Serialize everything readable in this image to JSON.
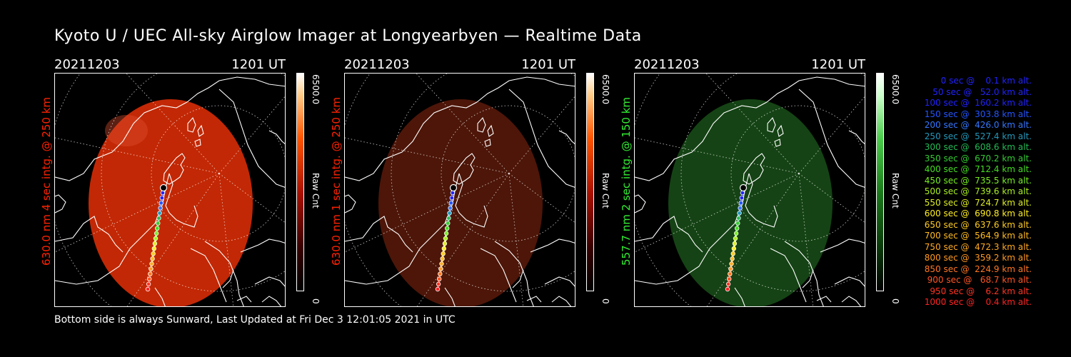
{
  "title": "Kyoto U / UEC All-sky Airglow Imager at Longyearbyen — Realtime Data",
  "footer": "Bottom side is always Sunward, Last Updated at Fri Dec  3 12:01:05 2021 in UTC",
  "panels": [
    {
      "date": "20211203",
      "time": "1201 UT",
      "ylabel": "630.0 nm 4 sec intg. @ 250 km",
      "label_color": "#ff2200",
      "image_color": "#cc2a05",
      "image_opacity": 0.95,
      "cbar_max": "6500.0",
      "cbar_min": "0",
      "cbar_label": "Raw Cnt",
      "cbar_gradient": "red"
    },
    {
      "date": "20211203",
      "time": "1201 UT",
      "ylabel": "630.0 nm 1 sec intg. @ 250 km",
      "label_color": "#ff2200",
      "image_color": "#5a1a0a",
      "image_opacity": 0.85,
      "cbar_max": "6500.0",
      "cbar_min": "0",
      "cbar_label": "Raw Cnt",
      "cbar_gradient": "red"
    },
    {
      "date": "20211203",
      "time": "1201 UT",
      "ylabel": "557.7 nm 2 sec intg. @ 150 km",
      "label_color": "#33ee33",
      "image_color": "#174a17",
      "image_opacity": 0.9,
      "cbar_max": "6500.0",
      "cbar_min": "0",
      "cbar_label": "Raw Cnt",
      "cbar_gradient": "green"
    }
  ],
  "legend": [
    {
      "text": "   0 sec @    0.1 km alt.",
      "color": "#2222ff"
    },
    {
      "text": "  50 sec @   52.0 km alt.",
      "color": "#2222ff"
    },
    {
      "text": " 100 sec @  160.2 km alt.",
      "color": "#2222ff"
    },
    {
      "text": " 150 sec @  303.8 km alt.",
      "color": "#2255ff"
    },
    {
      "text": " 200 sec @  426.0 km alt.",
      "color": "#3377ff"
    },
    {
      "text": " 250 sec @  527.4 km alt.",
      "color": "#2299bb"
    },
    {
      "text": " 300 sec @  608.6 km alt.",
      "color": "#22bb55"
    },
    {
      "text": " 350 sec @  670.2 km alt.",
      "color": "#33cc33"
    },
    {
      "text": " 400 sec @  712.4 km alt.",
      "color": "#44dd22"
    },
    {
      "text": " 450 sec @  735.5 km alt.",
      "color": "#77ee22"
    },
    {
      "text": " 500 sec @  739.6 km alt.",
      "color": "#aaee22"
    },
    {
      "text": " 550 sec @  724.7 km alt.",
      "color": "#ddee22"
    },
    {
      "text": " 600 sec @  690.8 km alt.",
      "color": "#ffee22"
    },
    {
      "text": " 650 sec @  637.6 km alt.",
      "color": "#ffcc22"
    },
    {
      "text": " 700 sec @  564.9 km alt.",
      "color": "#ffbb22"
    },
    {
      "text": " 750 sec @  472.3 km alt.",
      "color": "#ffaa22"
    },
    {
      "text": " 800 sec @  359.2 km alt.",
      "color": "#ff9922"
    },
    {
      "text": " 850 sec @  224.9 km alt.",
      "color": "#ff7722"
    },
    {
      "text": " 900 sec @   68.7 km alt.",
      "color": "#ff5522"
    },
    {
      "text": " 950 sec @    6.2 km alt.",
      "color": "#ff3322"
    },
    {
      "text": "1000 sec @    0.4 km alt.",
      "color": "#ff2222"
    }
  ]
}
